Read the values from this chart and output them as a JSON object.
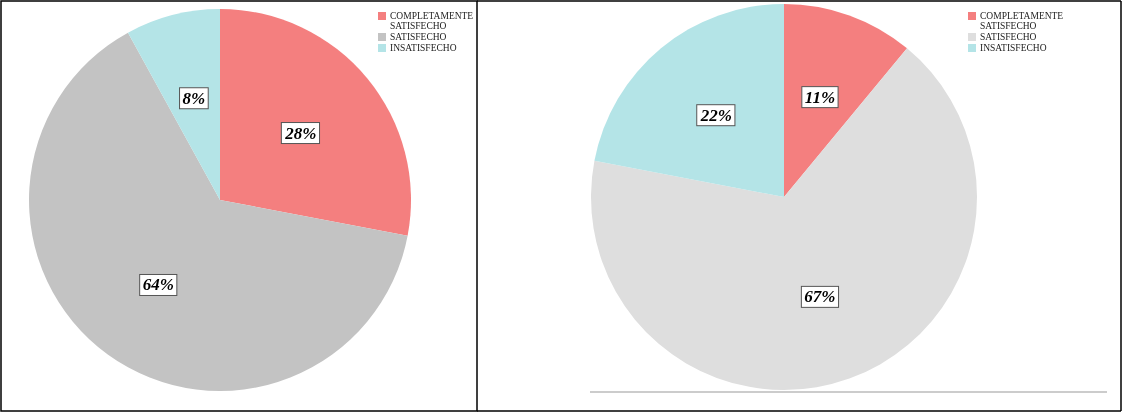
{
  "chart_data": [
    {
      "type": "pie",
      "categories": [
        "COMPLETAMENTE SATISFECHO",
        "SATISFECHO",
        "INSATISFECHO"
      ],
      "values": [
        28,
        64,
        8
      ],
      "colors": [
        "#f47f7f",
        "#c3c3c3",
        "#b4e4e7"
      ],
      "value_labels": [
        "28%",
        "64%",
        "8%"
      ],
      "legend": "top right"
    },
    {
      "type": "pie",
      "categories": [
        "COMPLETAMENTE SATISFECHO",
        "SATISFECHO",
        "INSATISFECHO"
      ],
      "values": [
        11,
        67,
        22
      ],
      "colors": [
        "#f47f7f",
        "#dedede",
        "#b4e4e7"
      ],
      "value_labels": [
        "11%",
        "67%",
        "22%"
      ],
      "legend": "top right"
    }
  ]
}
